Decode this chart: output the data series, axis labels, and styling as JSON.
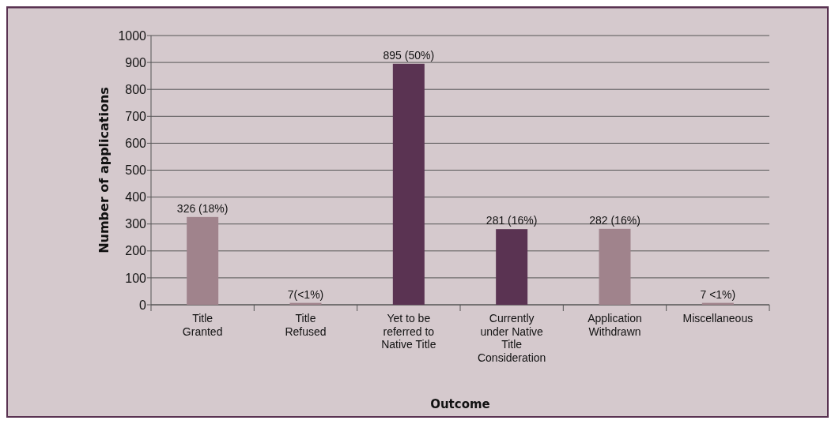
{
  "chart_data": {
    "type": "bar",
    "xlabel": "Outcome",
    "ylabel": "Number of applications",
    "categories": [
      "Title Granted",
      "Title Refused",
      "Yet to be referred to Native Title",
      "Currently under Native Title Consideration",
      "Application Withdrawn",
      "Miscellaneous"
    ],
    "values": [
      326,
      7,
      895,
      281,
      282,
      7
    ],
    "colors": [
      "#a0838c",
      "#a0838c",
      "#5a3352",
      "#5a3352",
      "#a0838c",
      "#a0838c"
    ],
    "value_labels": [
      "326 (18%)",
      "7(<1%)",
      "895 (50%)",
      "281 (16%)",
      "282 (16%)",
      "7 <1%)"
    ],
    "ylim": [
      0,
      1000
    ],
    "yticks": [
      0,
      100,
      200,
      300,
      400,
      500,
      600,
      700,
      800,
      900,
      1000
    ],
    "grid": "y"
  }
}
